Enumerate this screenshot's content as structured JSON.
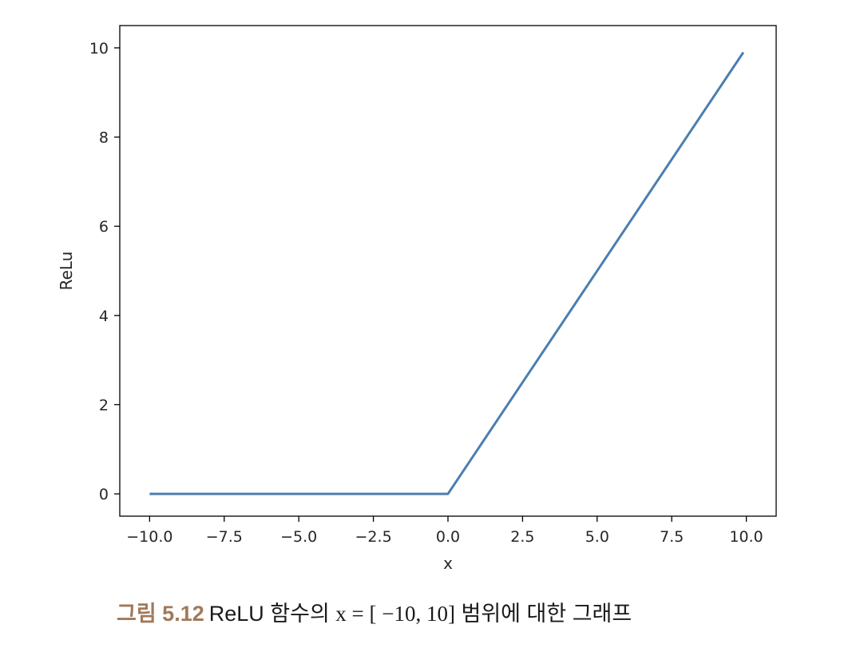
{
  "chart_data": {
    "type": "line",
    "xlabel": "x",
    "ylabel": "ReLu",
    "xlim": [
      -11.0,
      11.0
    ],
    "ylim": [
      -0.5,
      10.5
    ],
    "xticks": [
      -10.0,
      -7.5,
      -5.0,
      -2.5,
      0.0,
      2.5,
      5.0,
      7.5,
      10.0
    ],
    "xtick_labels": [
      "−10.0",
      "−7.5",
      "−5.0",
      "−2.5",
      "0.0",
      "2.5",
      "5.0",
      "7.5",
      "10.0"
    ],
    "yticks": [
      0,
      2,
      4,
      6,
      8,
      10
    ],
    "ytick_labels": [
      "0",
      "2",
      "4",
      "6",
      "8",
      "10"
    ],
    "grid": false,
    "series": [
      {
        "color": "#4a7eb3",
        "x": [
          -10.0,
          0.0,
          9.9
        ],
        "y": [
          0.0,
          0.0,
          9.9
        ]
      }
    ]
  },
  "caption": {
    "label": "그림 5.12",
    "text_before": "ReLU 함수의 ",
    "math": "x = [ −10, 10]",
    "text_after": " 범위에 대한 그래프"
  },
  "colors": {
    "caption_label": "#a07a5a",
    "line": "#4a7eb3"
  }
}
